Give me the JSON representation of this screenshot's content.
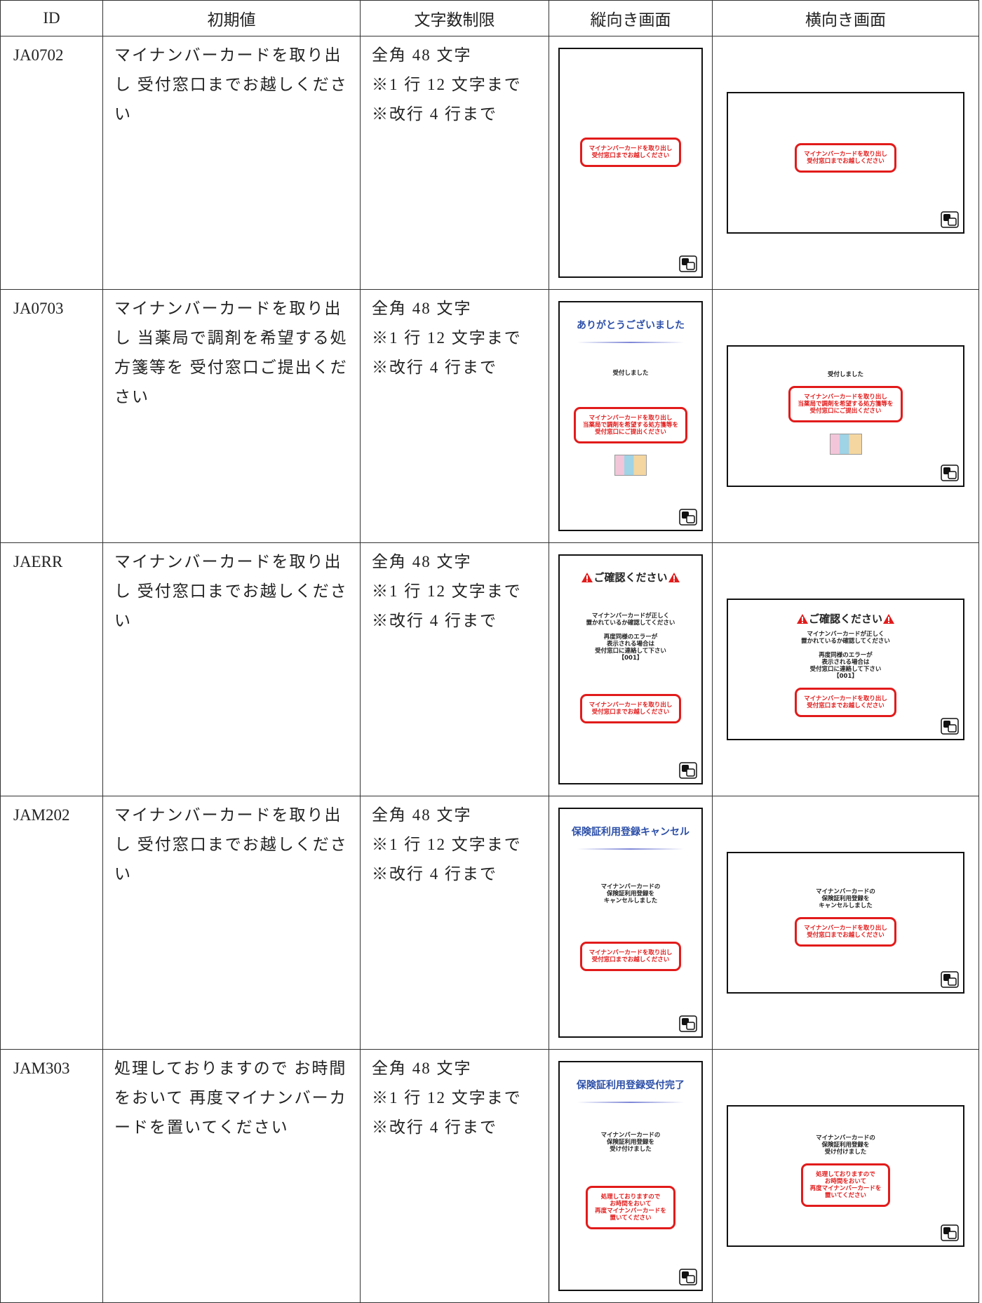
{
  "table": {
    "header": [
      "ID",
      "初期値",
      "文字数制限",
      "縦向き画面",
      "横向き画面"
    ],
    "rows": [
      {
        "id": "JA0702",
        "initial": "マイナンバーカードを取り出し 受付窓口までお越しください",
        "limit": [
          "全角 48 文字",
          "※1 行 12 文字まで",
          "※改行 4 行まで"
        ],
        "portrait": {
          "box": [
            "マイナンバーカードを取り出し",
            "受付窓口までお越しください"
          ]
        },
        "landscape": {
          "box": [
            "マイナンバーカードを取り出し",
            "受付窓口までお越しください"
          ]
        }
      },
      {
        "id": "JA0703",
        "initial": "マイナンバーカードを取り出し 当薬局で調剤を希望する処方箋等を 受付窓口ご提出ください",
        "limit": [
          "全角 48 文字",
          "※1 行 12 文字まで",
          "※改行 4 行まで"
        ],
        "portrait": {
          "title": "ありがとうございました",
          "body": [
            [
              "受付しました"
            ]
          ],
          "box": [
            "マイナンバーカードを取り出し",
            "当薬局で調剤を希望する処方箋等を",
            "受付窓口にご提出ください"
          ],
          "image": true
        },
        "landscape": {
          "body": [
            [
              "受付しました"
            ]
          ],
          "box": [
            "マイナンバーカードを取り出し",
            "当薬局で調剤を希望する処方箋等を",
            "受付窓口にご提出ください"
          ],
          "image": true
        }
      },
      {
        "id": "JAERR",
        "initial": "マイナンバーカードを取り出し 受付窓口までお越しください",
        "limit": [
          "全角 48 文字",
          "※1 行 12 文字まで",
          "※改行 4 行まで"
        ],
        "portrait": {
          "warning": "ご確認ください",
          "body": [
            [
              "マイナンバーカードが正しく",
              "置かれているか確認してください"
            ],
            [
              "再度同様のエラーが",
              "表示される場合は",
              "受付窓口に連絡して下さい",
              "【001】"
            ]
          ],
          "box": [
            "マイナンバーカードを取り出し",
            "受付窓口までお越しください"
          ]
        },
        "landscape": {
          "warning": "ご確認ください",
          "body": [
            [
              "マイナンバーカードが正しく",
              "置かれているか確認してください"
            ],
            [
              "再度同様のエラーが",
              "表示される場合は",
              "受付窓口に連絡して下さい",
              "【001】"
            ]
          ],
          "box": [
            "マイナンバーカードを取り出し",
            "受付窓口までお越しください"
          ]
        }
      },
      {
        "id": "JAM202",
        "initial": "マイナンバーカードを取り出し 受付窓口までお越しください",
        "limit": [
          "全角 48 文字",
          "※1 行 12 文字まで",
          "※改行 4 行まで"
        ],
        "portrait": {
          "title": "保険証利用登録キャンセル",
          "body": [
            [
              "マイナンバーカードの",
              "保険証利用登録を",
              "キャンセルしました"
            ]
          ],
          "box": [
            "マイナンバーカードを取り出し",
            "受付窓口までお越しください"
          ]
        },
        "landscape": {
          "body": [
            [
              "マイナンバーカードの",
              "保険証利用登録を",
              "キャンセルしました"
            ]
          ],
          "box": [
            "マイナンバーカードを取り出し",
            "受付窓口までお越しください"
          ]
        }
      },
      {
        "id": "JAM303",
        "initial": "処理しておりますので お時間をおいて 再度マイナンバーカードを置いてください",
        "limit": [
          "全角 48 文字",
          "※1 行 12 文字まで",
          "※改行 4 行まで"
        ],
        "portrait": {
          "title": "保険証利用登録受付完了",
          "body": [
            [
              "マイナンバーカードの",
              "保険証利用登録を",
              "受け付けました"
            ]
          ],
          "box": [
            "処理しておりますので",
            "お時間をおいて",
            "再度マイナンバーカードを",
            "置いてください"
          ]
        },
        "landscape": {
          "body": [
            [
              "マイナンバーカードの",
              "保険証利用登録を",
              "受け付けました"
            ]
          ],
          "box": [
            "処理しておりますので",
            "お時間をおいて",
            "再度マイナンバーカードを",
            "置いてください"
          ]
        }
      }
    ]
  }
}
